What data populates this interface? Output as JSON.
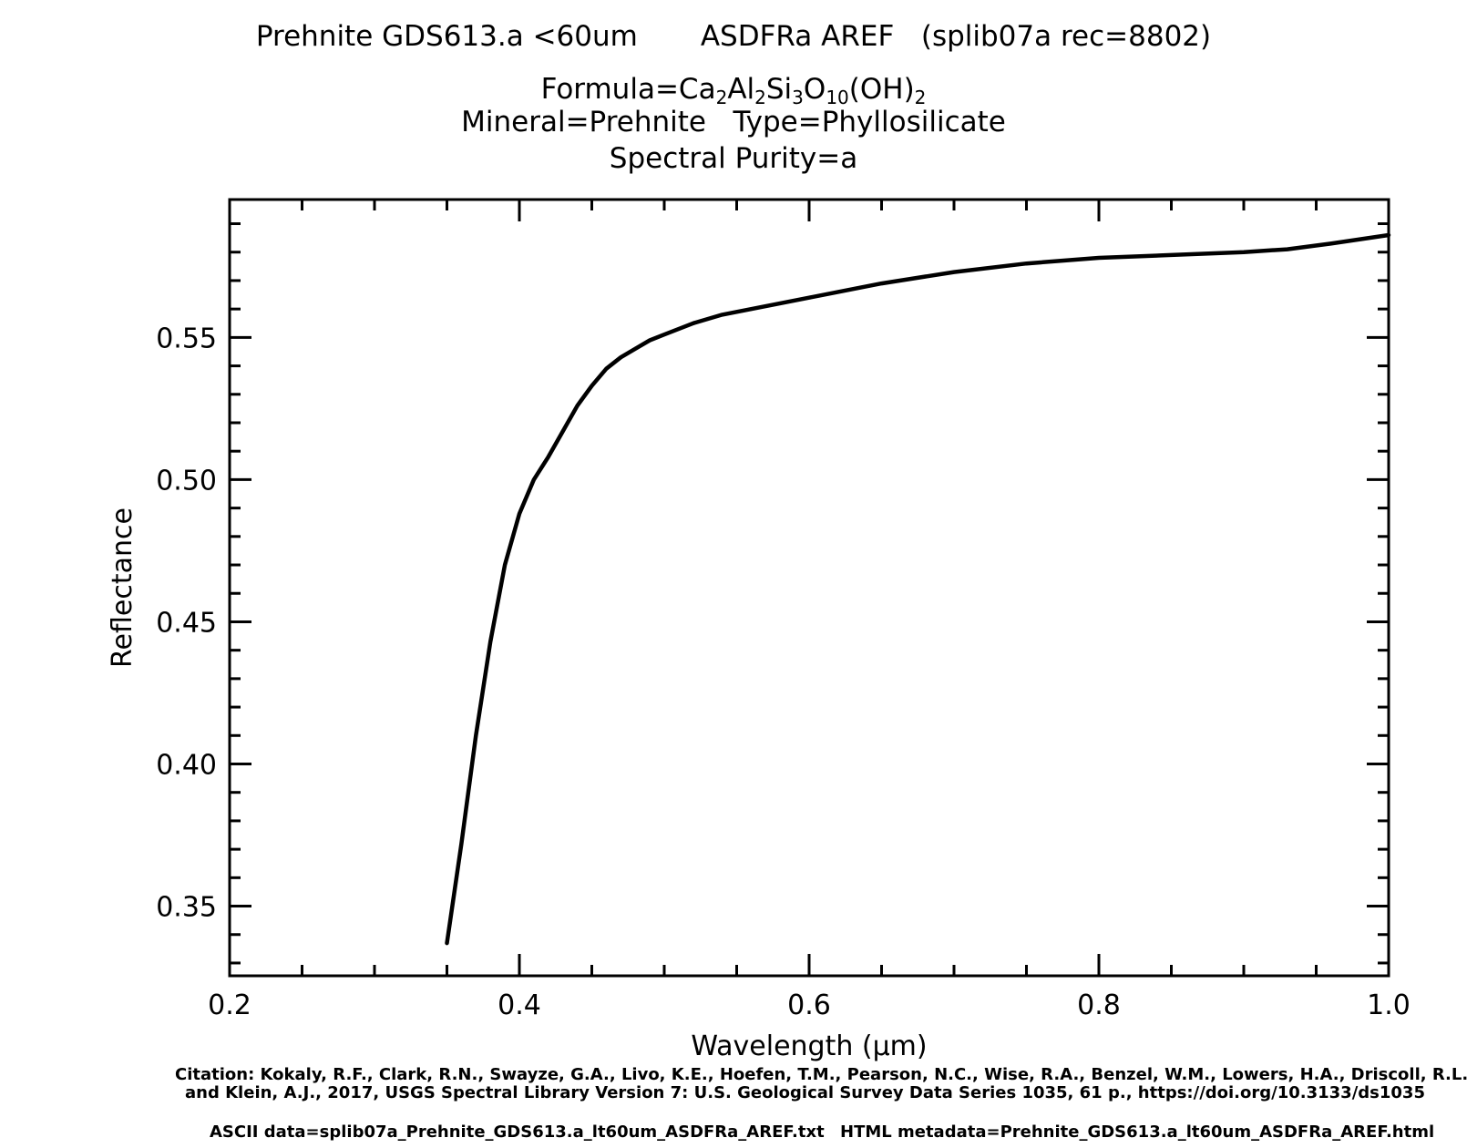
{
  "header": {
    "sample": "Prehnite GDS613.a <60um",
    "instrument": "ASDFRa AREF",
    "record": "(splib07a rec=8802)",
    "formula_prefix": "Formula=",
    "formula_parts": [
      {
        "text": "Ca",
        "sub": "2"
      },
      {
        "text": "Al",
        "sub": "2"
      },
      {
        "text": "Si",
        "sub": "3"
      },
      {
        "text": "O",
        "sub": "10"
      },
      {
        "text": "(OH)",
        "sub": "2"
      }
    ],
    "mineral_line": "Mineral=Prehnite   Type=Phyllosilicate",
    "purity_line": "Spectral Purity=a"
  },
  "footer": {
    "citation_line1": "Citation: Kokaly, R.F., Clark, R.N., Swayze, G.A., Livo, K.E., Hoefen, T.M., Pearson, N.C., Wise, R.A., Benzel, W.M., Lowers, H.A., Driscoll, R.L.,",
    "citation_line2": "and Klein, A.J., 2017, USGS Spectral Library Version 7: U.S. Geological Survey Data Series 1035, 61 p., https://doi.org/10.3133/ds1035",
    "ascii_data": "ASCII data=splib07a_Prehnite_GDS613.a_lt60um_ASDFRa_AREF.txt",
    "html_metadata": "HTML metadata=Prehnite_GDS613.a_lt60um_ASDFRa_AREF.html"
  },
  "chart_data": {
    "type": "line",
    "xlabel": "Wavelength (μm)",
    "ylabel": "Reflectance",
    "xlim": [
      0.2,
      1.0
    ],
    "ylim": [
      0.3255,
      0.5985
    ],
    "x_ticks": [
      0.2,
      0.4,
      0.6,
      0.8,
      1.0
    ],
    "x_tick_labels": [
      "0.2",
      "0.4",
      "0.6",
      "0.8",
      "1.0"
    ],
    "y_ticks": [
      0.35,
      0.4,
      0.45,
      0.5,
      0.55
    ],
    "y_tick_labels": [
      "0.35",
      "0.40",
      "0.45",
      "0.50",
      "0.55"
    ],
    "grid": false,
    "line_color": "#000000",
    "series": [
      {
        "x": [
          0.35,
          0.36,
          0.37,
          0.38,
          0.39,
          0.4,
          0.41,
          0.42,
          0.43,
          0.44,
          0.45,
          0.46,
          0.47,
          0.48,
          0.49,
          0.5,
          0.52,
          0.54,
          0.56,
          0.58,
          0.6,
          0.62,
          0.65,
          0.7,
          0.75,
          0.8,
          0.85,
          0.9,
          0.93,
          0.96,
          1.0
        ],
        "y": [
          0.337,
          0.372,
          0.41,
          0.443,
          0.47,
          0.488,
          0.5,
          0.508,
          0.517,
          0.526,
          0.533,
          0.539,
          0.543,
          0.546,
          0.549,
          0.551,
          0.555,
          0.558,
          0.56,
          0.562,
          0.564,
          0.566,
          0.569,
          0.573,
          0.576,
          0.578,
          0.579,
          0.58,
          0.581,
          0.583,
          0.586
        ]
      }
    ]
  }
}
